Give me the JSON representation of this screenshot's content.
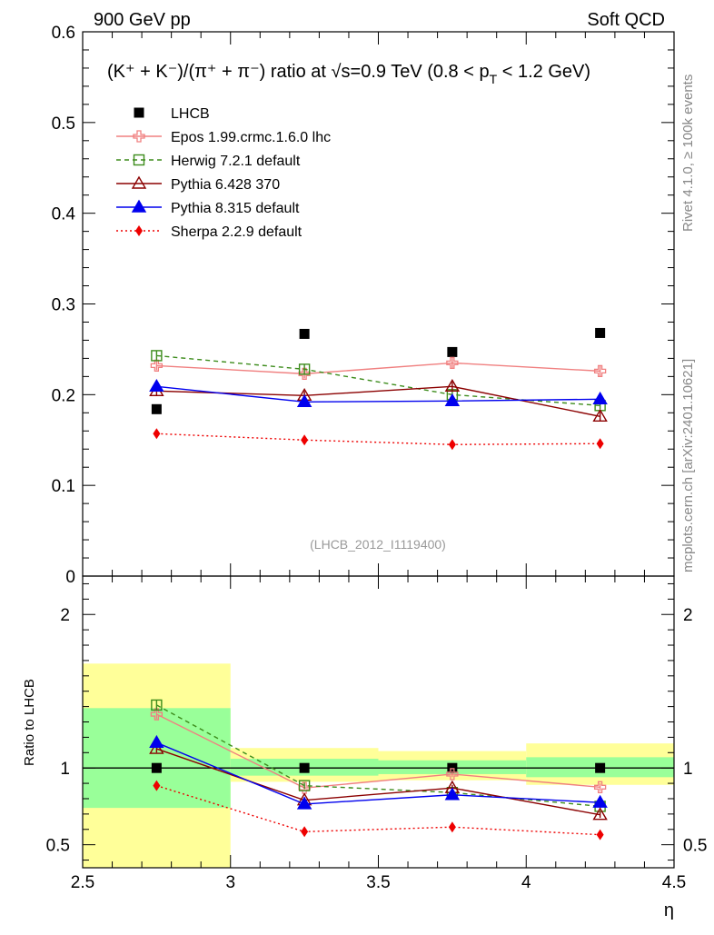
{
  "header": {
    "left_label": "900 GeV pp",
    "right_label": "Soft QCD"
  },
  "side_labels": {
    "rivet": "Rivet 4.1.0, ≥ 100k events",
    "mcplots": "mcplots.cern.ch [arXiv:2401.10621]"
  },
  "chart_data": {
    "type": "scatter",
    "title": "(K⁺ + K⁻)/(π⁺ + π⁻) ratio at √s=0.9 TeV (0.8 < p_T < 1.2 GeV)",
    "title_parts": {
      "main": "(K⁺ + K⁻)/(π⁺ + π⁻) ratio at √s=0.9 TeV (0.8 < p",
      "sub": "T",
      "tail": " < 1.2 GeV)"
    },
    "watermark": "(LHCB_2012_I1119400)",
    "xlabel": "η",
    "xlim": [
      2.5,
      4.5
    ],
    "x_ticks": [
      "2.5",
      "3",
      "3.5",
      "4",
      "4.5"
    ],
    "main_panel": {
      "ylabel": "",
      "ylim": [
        0,
        0.6
      ],
      "y_ticks": [
        "0",
        "0.1",
        "0.2",
        "0.3",
        "0.4",
        "0.5",
        "0.6"
      ]
    },
    "ratio_panel": {
      "ylabel": "Ratio to LHCB",
      "ylim": [
        0.35,
        2.25
      ],
      "y_ticks": [
        "0.5",
        "1",
        "2"
      ],
      "bands": [
        {
          "xmin": 2.5,
          "xmax": 3.0,
          "stat_lo": 0.74,
          "stat_hi": 1.39,
          "tot_lo": 0.1,
          "tot_hi": 1.68
        },
        {
          "xmin": 3.0,
          "xmax": 3.5,
          "stat_lo": 0.95,
          "stat_hi": 1.06,
          "tot_lo": 0.91,
          "tot_hi": 1.13
        },
        {
          "xmin": 3.5,
          "xmax": 4.0,
          "stat_lo": 0.96,
          "stat_hi": 1.05,
          "tot_lo": 0.92,
          "tot_hi": 1.11
        },
        {
          "xmin": 4.0,
          "xmax": 4.5,
          "stat_lo": 0.94,
          "stat_hi": 1.07,
          "tot_lo": 0.89,
          "tot_hi": 1.16
        }
      ]
    },
    "x": [
      2.75,
      3.25,
      3.75,
      4.25
    ],
    "series": [
      {
        "name": "LHCB",
        "key": "lhcb",
        "color": "#000000",
        "marker": "square-filled",
        "line": "none",
        "values": [
          0.184,
          0.267,
          0.247,
          0.268
        ],
        "errors": [
          0,
          0,
          0,
          0
        ],
        "ratio": [
          1,
          1,
          1,
          1
        ],
        "ratio_errors": [
          0,
          0,
          0,
          0
        ]
      },
      {
        "name": "Epos 1.99.crmc.1.6.0 lhc",
        "key": "epos",
        "color": "#f08080",
        "marker": "cross",
        "line": "solid",
        "values": [
          0.232,
          0.223,
          0.235,
          0.226
        ],
        "errors": [
          0.005,
          0.005,
          0.006,
          0.006
        ],
        "ratio": [
          1.35,
          0.87,
          0.96,
          0.875
        ],
        "ratio_errors": [
          0.03,
          0.02,
          0.02,
          0.025
        ]
      },
      {
        "name": "Herwig 7.2.1 default",
        "key": "herwig",
        "color": "#3d8c1c",
        "marker": "square-open",
        "line": "dashed",
        "values": [
          0.243,
          0.228,
          0.2,
          0.188
        ],
        "errors": [
          0.005,
          0.005,
          0.004,
          0.004
        ],
        "ratio": [
          1.41,
          0.885,
          0.84,
          0.75
        ],
        "ratio_errors": [
          0.03,
          0.02,
          0.02,
          0.02
        ]
      },
      {
        "name": "Pythia 6.428 370",
        "key": "py6",
        "color": "#8b0000",
        "marker": "triangle-open",
        "line": "solid",
        "values": [
          0.204,
          0.199,
          0.209,
          0.176
        ],
        "errors": [
          0.005,
          0.005,
          0.005,
          0.005
        ],
        "ratio": [
          1.125,
          0.79,
          0.87,
          0.695
        ],
        "ratio_errors": [
          0.025,
          0.02,
          0.02,
          0.02
        ]
      },
      {
        "name": "Pythia 8.315 default",
        "key": "py8",
        "color": "#0000ee",
        "marker": "triangle-filled",
        "line": "solid",
        "values": [
          0.209,
          0.192,
          0.193,
          0.195
        ],
        "errors": [
          0.005,
          0.004,
          0.004,
          0.006
        ],
        "ratio": [
          1.165,
          0.765,
          0.825,
          0.775
        ],
        "ratio_errors": [
          0.025,
          0.015,
          0.015,
          0.02
        ]
      },
      {
        "name": "Sherpa 2.2.9 default",
        "key": "sherpa",
        "color": "#ee0000",
        "marker": "diamond-filled",
        "line": "dotted",
        "values": [
          0.157,
          0.15,
          0.145,
          0.146
        ],
        "errors": [
          0.003,
          0.003,
          0.003,
          0.003
        ],
        "ratio": [
          0.885,
          0.585,
          0.615,
          0.565
        ],
        "ratio_errors": [
          0.02,
          0.02,
          0.02,
          0.02
        ]
      }
    ]
  }
}
